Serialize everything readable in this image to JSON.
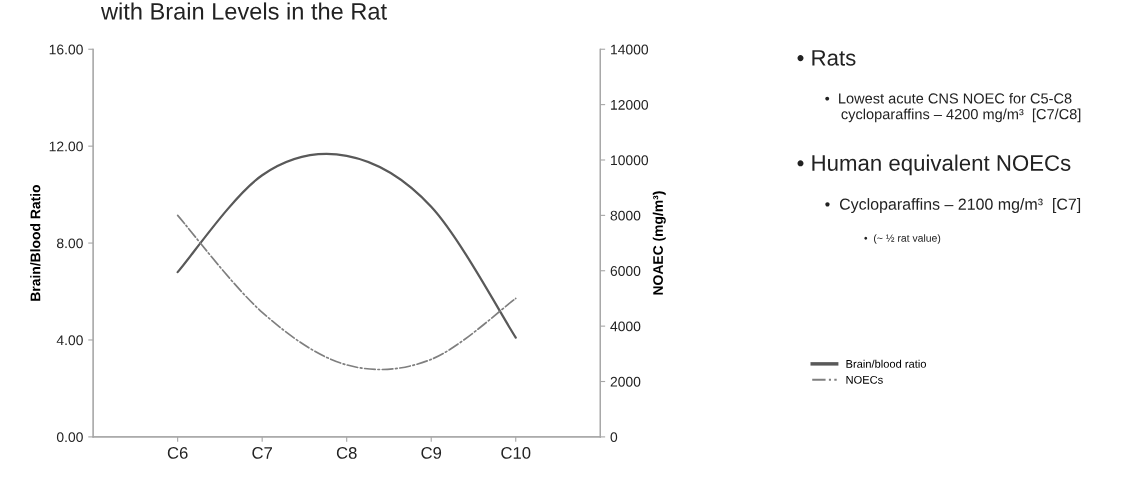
{
  "chart_data": {
    "type": "line",
    "title": "with Brain Levels in the Rat",
    "categories": [
      "C6",
      "C7",
      "C8",
      "C9",
      "C10"
    ],
    "series": [
      {
        "name": "Brain/blood ratio",
        "color": "#595959",
        "line_style": "solid",
        "values": [
          6.8,
          10.8,
          11.6,
          9.5,
          4.1
        ]
      },
      {
        "name": "NOECs",
        "color": "#7f7f7f",
        "line_style": "dashdot",
        "axis": "y2",
        "values": [
          8000,
          4500,
          2600,
          2800,
          5000
        ]
      }
    ],
    "ylabel": "Brain/Blood Ratio",
    "y2label": "NOAEC (mg/m³)",
    "ylim": [
      0,
      16
    ],
    "yticks": [
      {
        "value": 0,
        "label": "0.00"
      },
      {
        "value": 4,
        "label": "4.00"
      },
      {
        "value": 8,
        "label": "8.00"
      },
      {
        "value": 12,
        "label": "12.00"
      },
      {
        "value": 16,
        "label": "16.00"
      }
    ],
    "y2lim": [
      0,
      14000
    ],
    "y2ticks": [
      {
        "value": 0,
        "label": "0"
      },
      {
        "value": 2000,
        "label": "2000"
      },
      {
        "value": 4000,
        "label": "4000"
      },
      {
        "value": 6000,
        "label": "6000"
      },
      {
        "value": 8000,
        "label": "8000"
      },
      {
        "value": 10000,
        "label": "10000"
      },
      {
        "value": 12000,
        "label": "12000"
      },
      {
        "value": 14000,
        "label": "14000"
      }
    ],
    "grid": false,
    "legend": "right",
    "marker": "none",
    "annotations": [
      "• Rats",
      "•  Lowest acute CNS NOEC for C5-C8\n    cycloparaffins – 4200 mg/m³  [C7/C8]",
      "• Human equivalent NOECs",
      "•  Cycloparaffins – 2100 mg/m³  [C7]",
      "•  (~ ½ rat value)"
    ]
  }
}
